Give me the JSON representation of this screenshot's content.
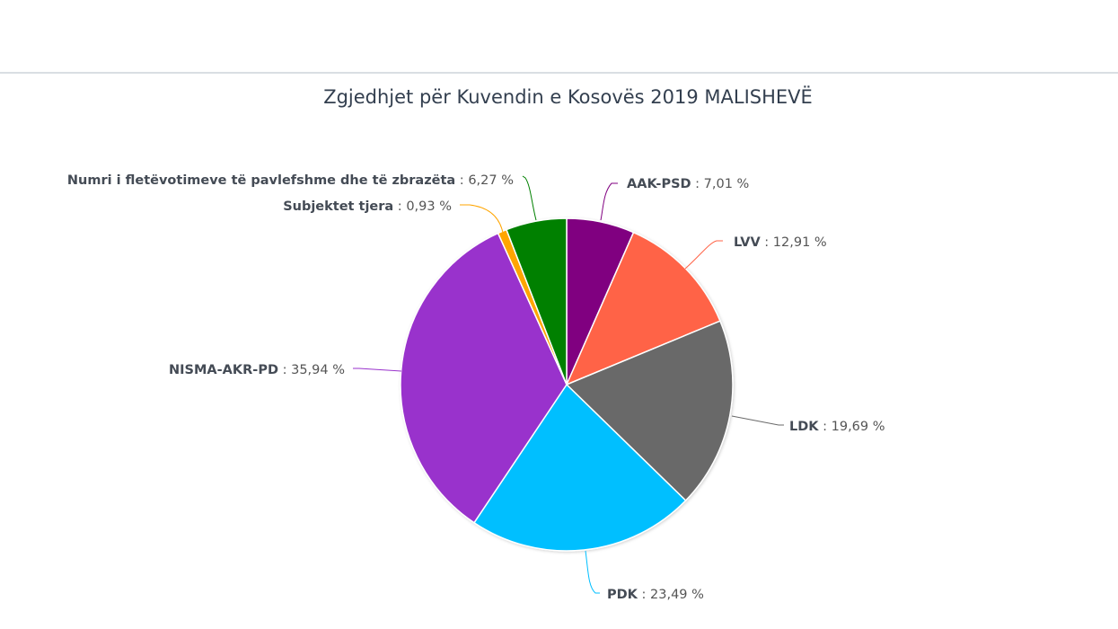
{
  "chart_data": {
    "type": "pie",
    "title": "Zgjedhjet për Kuvendin e Kosovës 2019 MALISHEVË",
    "start_angle": "top (12 o'clock), clockwise",
    "slices": [
      {
        "name": "AAK-PSD",
        "value": 7.01,
        "label_value": "7,01 %",
        "color": "#800080"
      },
      {
        "name": "LVV",
        "value": 12.91,
        "label_value": "12,91 %",
        "color": "#FF6347"
      },
      {
        "name": "LDK",
        "value": 19.69,
        "label_value": "19,69 %",
        "color": "#696969"
      },
      {
        "name": "PDK",
        "value": 23.49,
        "label_value": "23,49 %",
        "color": "#00BFFF"
      },
      {
        "name": "NISMA-AKR-PD",
        "value": 35.94,
        "label_value": "35,94 %",
        "color": "#9932CC"
      },
      {
        "name": "Subjektet tjera",
        "value": 0.93,
        "label_value": "0,93 %",
        "color": "#FFA500"
      },
      {
        "name": "Numri i fletëvotimeve të pavlefshme dhe të zbrazëta",
        "value": 6.27,
        "label_value": "6,27 %",
        "color": "#008000"
      }
    ],
    "legend": "none (data labels with connectors)"
  }
}
